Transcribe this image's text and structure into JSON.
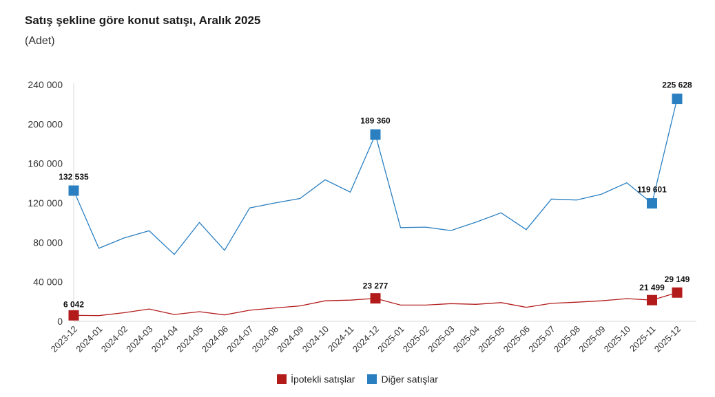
{
  "header": {
    "title": "Satış şekline göre konut satışı, Aralık 2025",
    "subtitle": "(Adet)"
  },
  "legend": {
    "items": [
      {
        "label": "İpotekli satışlar",
        "color": "#b31b1b"
      },
      {
        "label": "Diğer satışlar",
        "color": "#2a7fc1"
      }
    ]
  },
  "chart_data": {
    "type": "line",
    "title": "Satış şekline göre konut satışı, Aralık 2025",
    "subtitle": "(Adet)",
    "x": [
      "2023-12",
      "2024-01",
      "2024-02",
      "2024-03",
      "2024-04",
      "2024-05",
      "2024-06",
      "2024-07",
      "2024-08",
      "2024-09",
      "2024-10",
      "2024-11",
      "2024-12",
      "2025-01",
      "2025-02",
      "2025-03",
      "2025-04",
      "2025-05",
      "2025-06",
      "2025-07",
      "2025-08",
      "2025-09",
      "2025-10",
      "2025-11",
      "2025-12"
    ],
    "ylim": [
      0,
      240000
    ],
    "yticks": [
      0,
      40000,
      80000,
      120000,
      160000,
      200000,
      240000
    ],
    "ytick_labels": [
      "0",
      "40 000",
      "80 000",
      "120 000",
      "160 000",
      "200 000",
      "240 000"
    ],
    "grid": false,
    "legend_position": "bottom",
    "series": [
      {
        "name": "İpotekli satışlar",
        "color": "#b31b1b",
        "values": [
          6042,
          5800,
          8700,
          12500,
          6900,
          9800,
          6500,
          11200,
          13500,
          15600,
          20800,
          21500,
          23277,
          16500,
          16500,
          17900,
          17200,
          19000,
          14200,
          18200,
          19400,
          20800,
          23000,
          21499,
          29149
        ],
        "highlight": [
          {
            "index": 0,
            "label": "6 042"
          },
          {
            "index": 12,
            "label": "23 277"
          },
          {
            "index": 23,
            "label": "21 499"
          },
          {
            "index": 24,
            "label": "29 149"
          }
        ]
      },
      {
        "name": "Diğer satışlar",
        "color": "#2a7fc1",
        "values": [
          132535,
          74000,
          84500,
          91800,
          67800,
          100200,
          72000,
          115000,
          120000,
          124500,
          143500,
          131000,
          189360,
          95000,
          95500,
          92000,
          100500,
          110000,
          93000,
          124000,
          123000,
          129000,
          140500,
          119601,
          225628
        ],
        "highlight": [
          {
            "index": 0,
            "label": "132 535"
          },
          {
            "index": 12,
            "label": "189 360"
          },
          {
            "index": 23,
            "label": "119 601"
          },
          {
            "index": 24,
            "label": "225 628"
          }
        ]
      }
    ]
  }
}
